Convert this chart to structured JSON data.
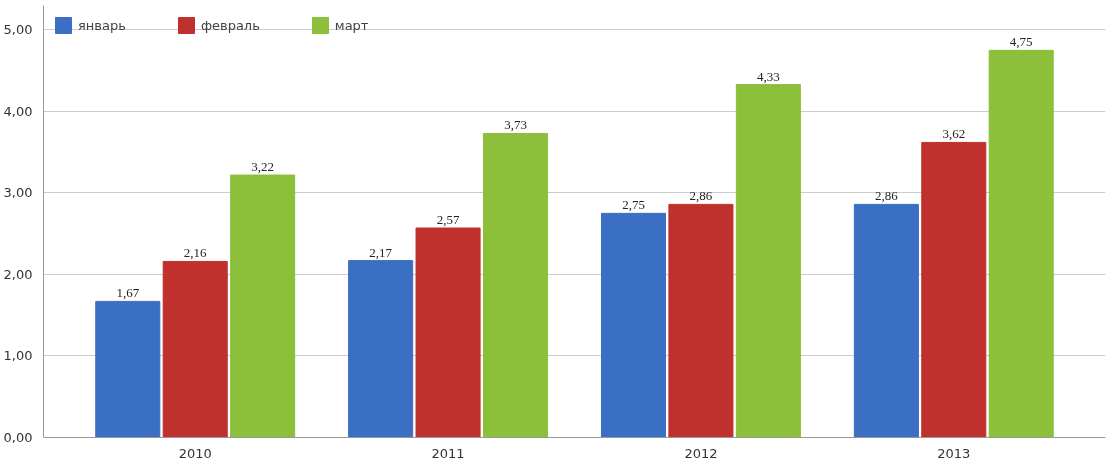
{
  "chart_data": {
    "type": "bar",
    "categories": [
      "2010",
      "2011",
      "2012",
      "2013"
    ],
    "series": [
      {
        "name": "январь",
        "color": "#3a6fc4",
        "values": [
          1.67,
          2.17,
          2.75,
          2.86
        ],
        "value_labels": [
          "1,67",
          "2,17",
          "2,75",
          "2,86"
        ]
      },
      {
        "name": "февраль",
        "color": "#c0302c",
        "values": [
          2.16,
          2.57,
          2.86,
          3.62
        ],
        "value_labels": [
          "2,16",
          "2,57",
          "2,86",
          "3,62"
        ]
      },
      {
        "name": "март",
        "color": "#8cbf3a",
        "values": [
          3.22,
          3.73,
          4.33,
          4.75
        ],
        "value_labels": [
          "3,22",
          "3,73",
          "4,33",
          "4,75"
        ]
      }
    ],
    "ylim": [
      0,
      5.3
    ],
    "yticks": [
      {
        "value": 0,
        "label": "0,00"
      },
      {
        "value": 1,
        "label": "1,00"
      },
      {
        "value": 2,
        "label": "2,00"
      },
      {
        "value": 3,
        "label": "3,00"
      },
      {
        "value": 4,
        "label": "4,00"
      },
      {
        "value": 5,
        "label": "5,00"
      }
    ],
    "grid": "y",
    "legend": "top left"
  }
}
